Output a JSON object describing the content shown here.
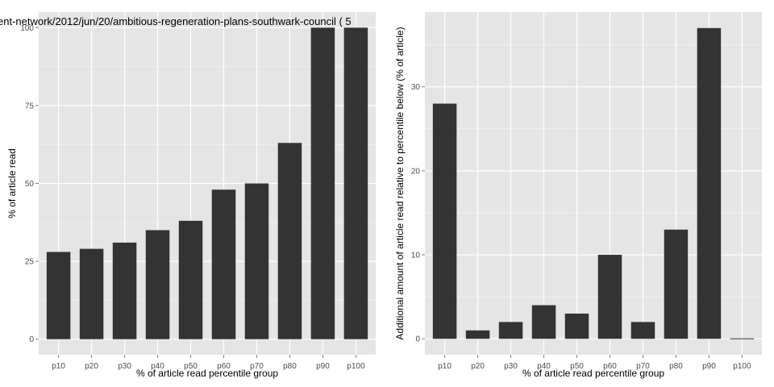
{
  "colors": {
    "panel_background": "#e5e5e5",
    "grid_major": "#ffffff",
    "grid_minor": "#f2f2f2",
    "bar_fill": "#333333",
    "tick_text": "#4d4d4d"
  },
  "chart_data": [
    {
      "type": "bar",
      "title": "ent-network/2012/jun/20/ambitious-regeneration-plans-southwark-council ( 5",
      "xlabel": "% of article read percentile group",
      "ylabel": "% of article read",
      "categories": [
        "p10",
        "p20",
        "p30",
        "p40",
        "p50",
        "p60",
        "p70",
        "p80",
        "p90",
        "p100"
      ],
      "values": [
        28,
        29,
        31,
        35,
        38,
        48,
        50,
        63,
        100,
        100
      ],
      "ylim": [
        -5,
        105
      ],
      "yticks": [
        0,
        25,
        50,
        75,
        100
      ],
      "ytick_labels": [
        "0",
        "25",
        "50",
        "75",
        "100"
      ],
      "grid": true
    },
    {
      "type": "bar",
      "title": "",
      "xlabel": "% of article read percentile group",
      "ylabel": "Additional amount of article read relative to percentile below (% of article)",
      "categories": [
        "p10",
        "p20",
        "p30",
        "p40",
        "p50",
        "p60",
        "p70",
        "p80",
        "p90",
        "p100"
      ],
      "values": [
        28,
        1,
        2,
        4,
        3,
        10,
        2,
        13,
        37,
        0
      ],
      "ylim": [
        -1.9,
        38.9
      ],
      "yticks": [
        0,
        10,
        20,
        30
      ],
      "ytick_labels": [
        "0",
        "10",
        "20",
        "30"
      ],
      "grid": true
    }
  ]
}
